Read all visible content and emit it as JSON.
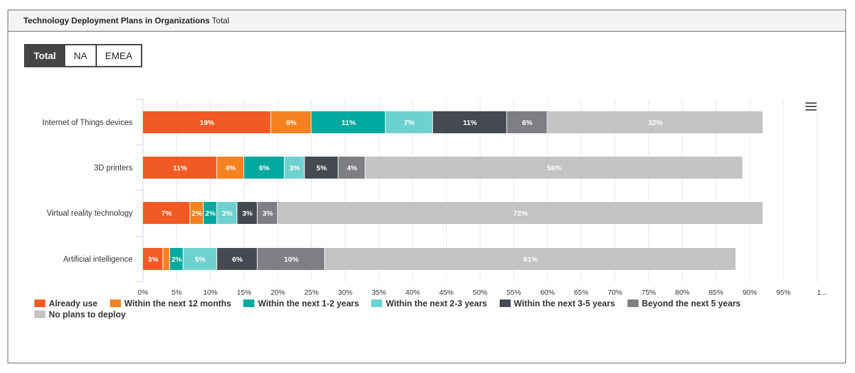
{
  "header": {
    "title_bold": "Technology Deployment Plans in Organizations",
    "title_suffix": "Total"
  },
  "tabs": [
    {
      "label": "Total",
      "active": true
    },
    {
      "label": "NA",
      "active": false
    },
    {
      "label": "EMEA",
      "active": false
    }
  ],
  "chart_data": {
    "type": "bar",
    "orientation": "horizontal",
    "stacked": true,
    "categories": [
      "Internet of Things devices",
      "3D printers",
      "Virtual reality technology",
      "Artificial intelligence"
    ],
    "series": [
      {
        "name": "Already use",
        "color": "#f15a22",
        "values": [
          19,
          11,
          7,
          3
        ]
      },
      {
        "name": "Within the next 12 months",
        "color": "#f58220",
        "values": [
          6,
          4,
          2,
          1
        ]
      },
      {
        "name": "Within the next 1-2 years",
        "color": "#00a99d",
        "values": [
          11,
          6,
          2,
          2
        ]
      },
      {
        "name": "Within the next 2-3 years",
        "color": "#6fd1cf",
        "values": [
          7,
          3,
          3,
          5
        ]
      },
      {
        "name": "Within the next 3-5 years",
        "color": "#444a50",
        "values": [
          11,
          5,
          3,
          6
        ]
      },
      {
        "name": "Beyond the next 5 years",
        "color": "#7d7f82",
        "values": [
          6,
          4,
          3,
          10
        ]
      },
      {
        "name": "No plans to deploy",
        "color": "#c2c3c4",
        "values": [
          32,
          56,
          72,
          61
        ]
      }
    ],
    "data_labels": [
      [
        "19%",
        "6%",
        "11%",
        "7%",
        "11%",
        "6%",
        "32%"
      ],
      [
        "11%",
        "4%",
        "6%",
        "3%",
        "5%",
        "4%",
        "56%"
      ],
      [
        "7%",
        "2%",
        "2%",
        "3%",
        "3%",
        "3%",
        "72%"
      ],
      [
        "3%",
        "",
        "2%",
        "5%",
        "6%",
        "10%",
        "61%"
      ]
    ],
    "x_ticks": [
      "0%",
      "5%",
      "10%",
      "15%",
      "20%",
      "25%",
      "30%",
      "35%",
      "40%",
      "45%",
      "50%",
      "55%",
      "60%",
      "65%",
      "70%",
      "75%",
      "80%",
      "85%",
      "90%",
      "95%",
      "1..."
    ],
    "xlim": [
      0,
      100
    ],
    "grid": true,
    "legend_position": "bottom-left"
  }
}
